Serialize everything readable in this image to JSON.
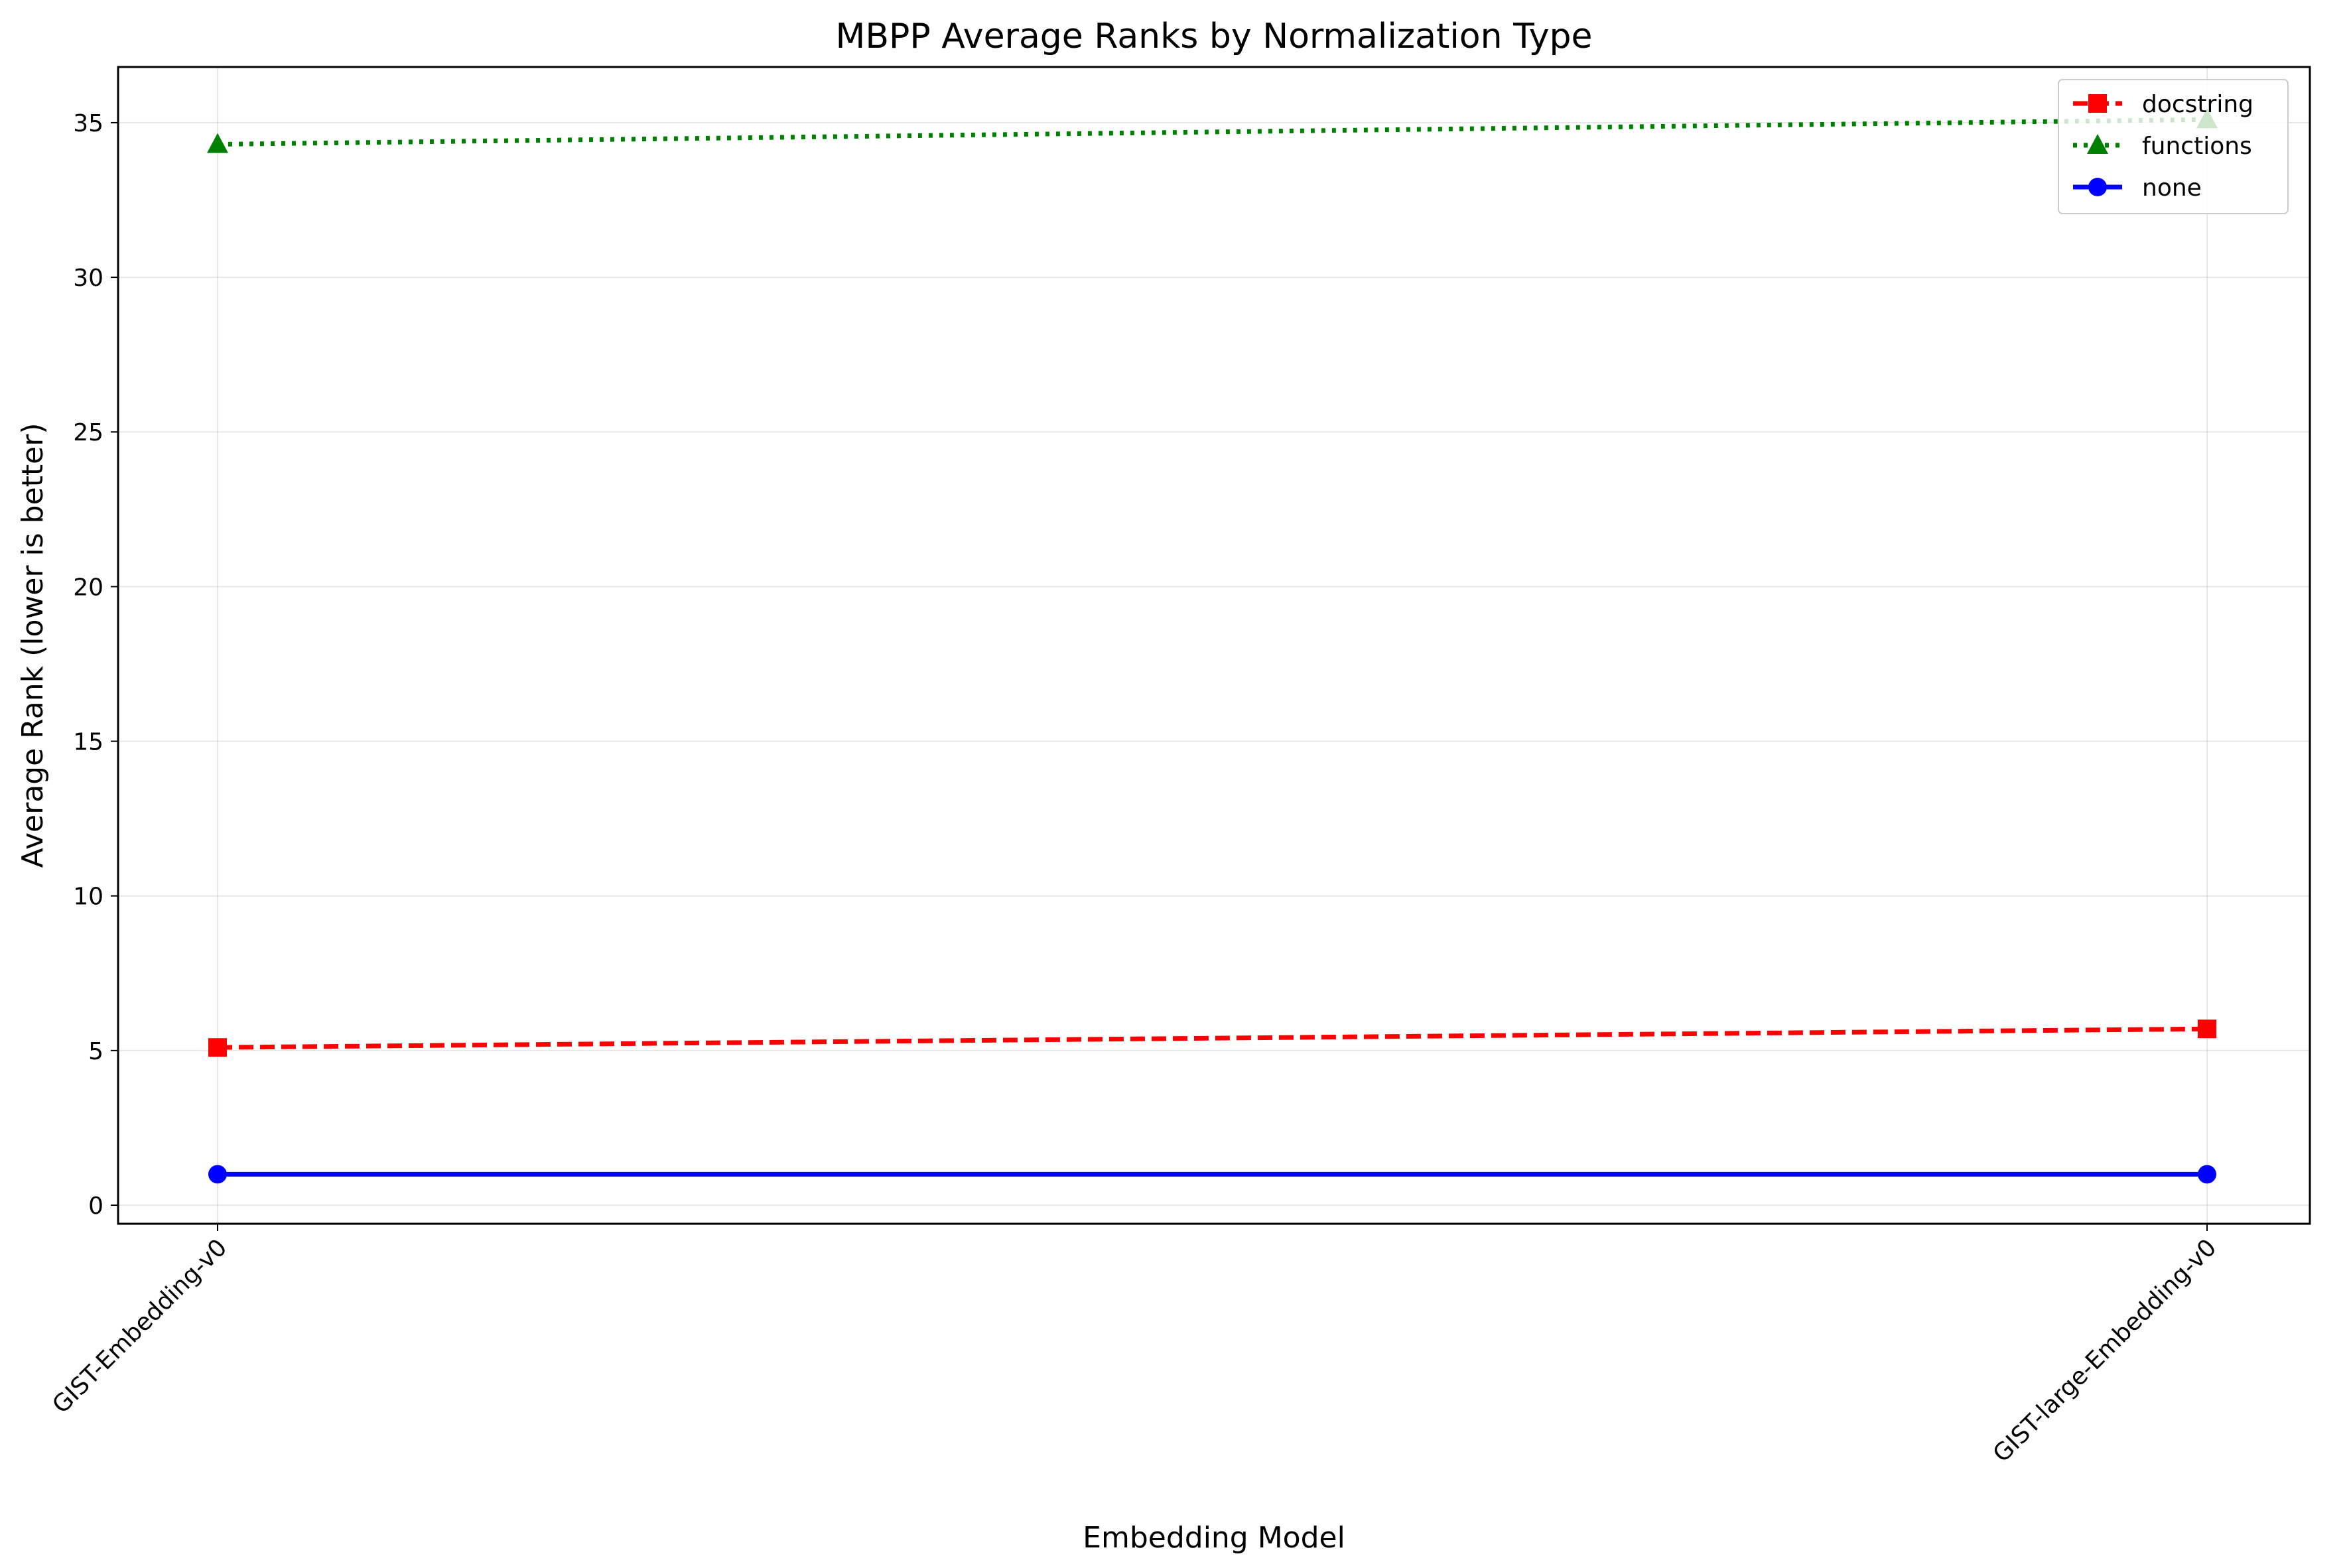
{
  "chart_data": {
    "type": "line",
    "title": "MBPP Average Ranks by Normalization Type",
    "xlabel": "Embedding Model",
    "ylabel": "Average Rank (lower is better)",
    "categories": [
      "GIST-Embedding-v0",
      "GIST-large-Embedding-v0"
    ],
    "ylim": [
      -0.6,
      36.8
    ],
    "yticks": [
      0,
      5,
      10,
      15,
      20,
      25,
      30,
      35
    ],
    "grid": true,
    "legend_position": "top-right",
    "series": [
      {
        "name": "docstring",
        "values": [
          5.1,
          5.7
        ],
        "color": "#ff0000",
        "line_style": "dashed",
        "marker": "square"
      },
      {
        "name": "functions",
        "values": [
          34.3,
          35.1
        ],
        "color": "#008000",
        "line_style": "dotted",
        "marker": "triangle"
      },
      {
        "name": "none",
        "values": [
          1.0,
          1.0
        ],
        "color": "#0000ff",
        "line_style": "solid",
        "marker": "circle"
      }
    ]
  }
}
